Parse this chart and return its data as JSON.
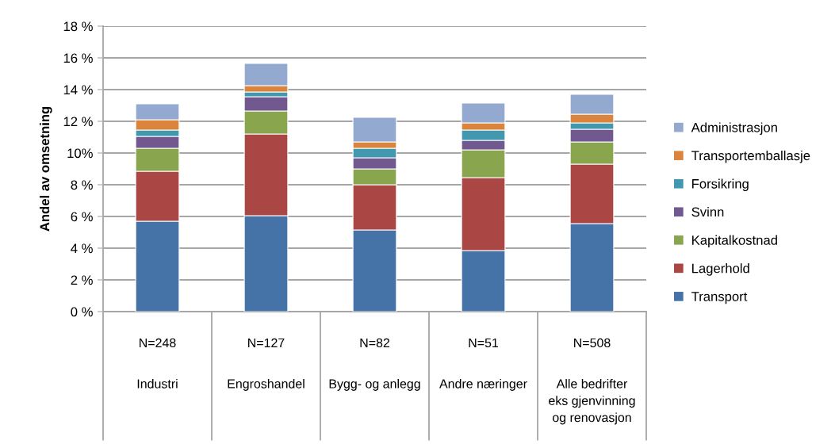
{
  "chart_data": {
    "type": "bar",
    "stacked": true,
    "ylabel": "Andel av omsetning",
    "categories": [
      "N=248\nIndustri",
      "N=127\nEngroshandel",
      "N=82\nBygg- og anlegg",
      "N=51\nAndre næringer",
      "N=508\nAlle bedrifter\neks gjenvinning\nog renovasjon"
    ],
    "series": [
      {
        "name": "Transport",
        "color": "#4572a7",
        "values": [
          5.7,
          6.05,
          5.15,
          3.85,
          5.55
        ]
      },
      {
        "name": "Lagerhold",
        "color": "#aa4643",
        "values": [
          3.15,
          5.15,
          2.85,
          4.6,
          3.75
        ]
      },
      {
        "name": "Kapitalkostnad",
        "color": "#89a54e",
        "values": [
          1.45,
          1.45,
          1.0,
          1.75,
          1.4
        ]
      },
      {
        "name": "Svinn",
        "color": "#71588f",
        "values": [
          0.75,
          0.9,
          0.7,
          0.6,
          0.8
        ]
      },
      {
        "name": "Forsikring",
        "color": "#4198af",
        "values": [
          0.4,
          0.3,
          0.6,
          0.65,
          0.4
        ]
      },
      {
        "name": "Transportemballasje",
        "color": "#db843d",
        "values": [
          0.65,
          0.4,
          0.4,
          0.45,
          0.55
        ]
      },
      {
        "name": "Administrasjon",
        "color": "#93a9cf",
        "values": [
          1.0,
          1.4,
          1.55,
          1.25,
          1.25
        ]
      }
    ],
    "ylim": [
      0,
      18
    ],
    "yticks": [
      {
        "value": 0,
        "label": "0 %"
      },
      {
        "value": 2,
        "label": "2 %"
      },
      {
        "value": 4,
        "label": "4 %"
      },
      {
        "value": 6,
        "label": "6 %"
      },
      {
        "value": 8,
        "label": "8 %"
      },
      {
        "value": 10,
        "label": "10%"
      },
      {
        "value": 12,
        "label": "12 %"
      },
      {
        "value": 14,
        "label": "14 %"
      },
      {
        "value": 16,
        "label": "16 %"
      },
      {
        "value": 18,
        "label": "18 %"
      }
    ],
    "grid": "y",
    "legend": "right"
  }
}
